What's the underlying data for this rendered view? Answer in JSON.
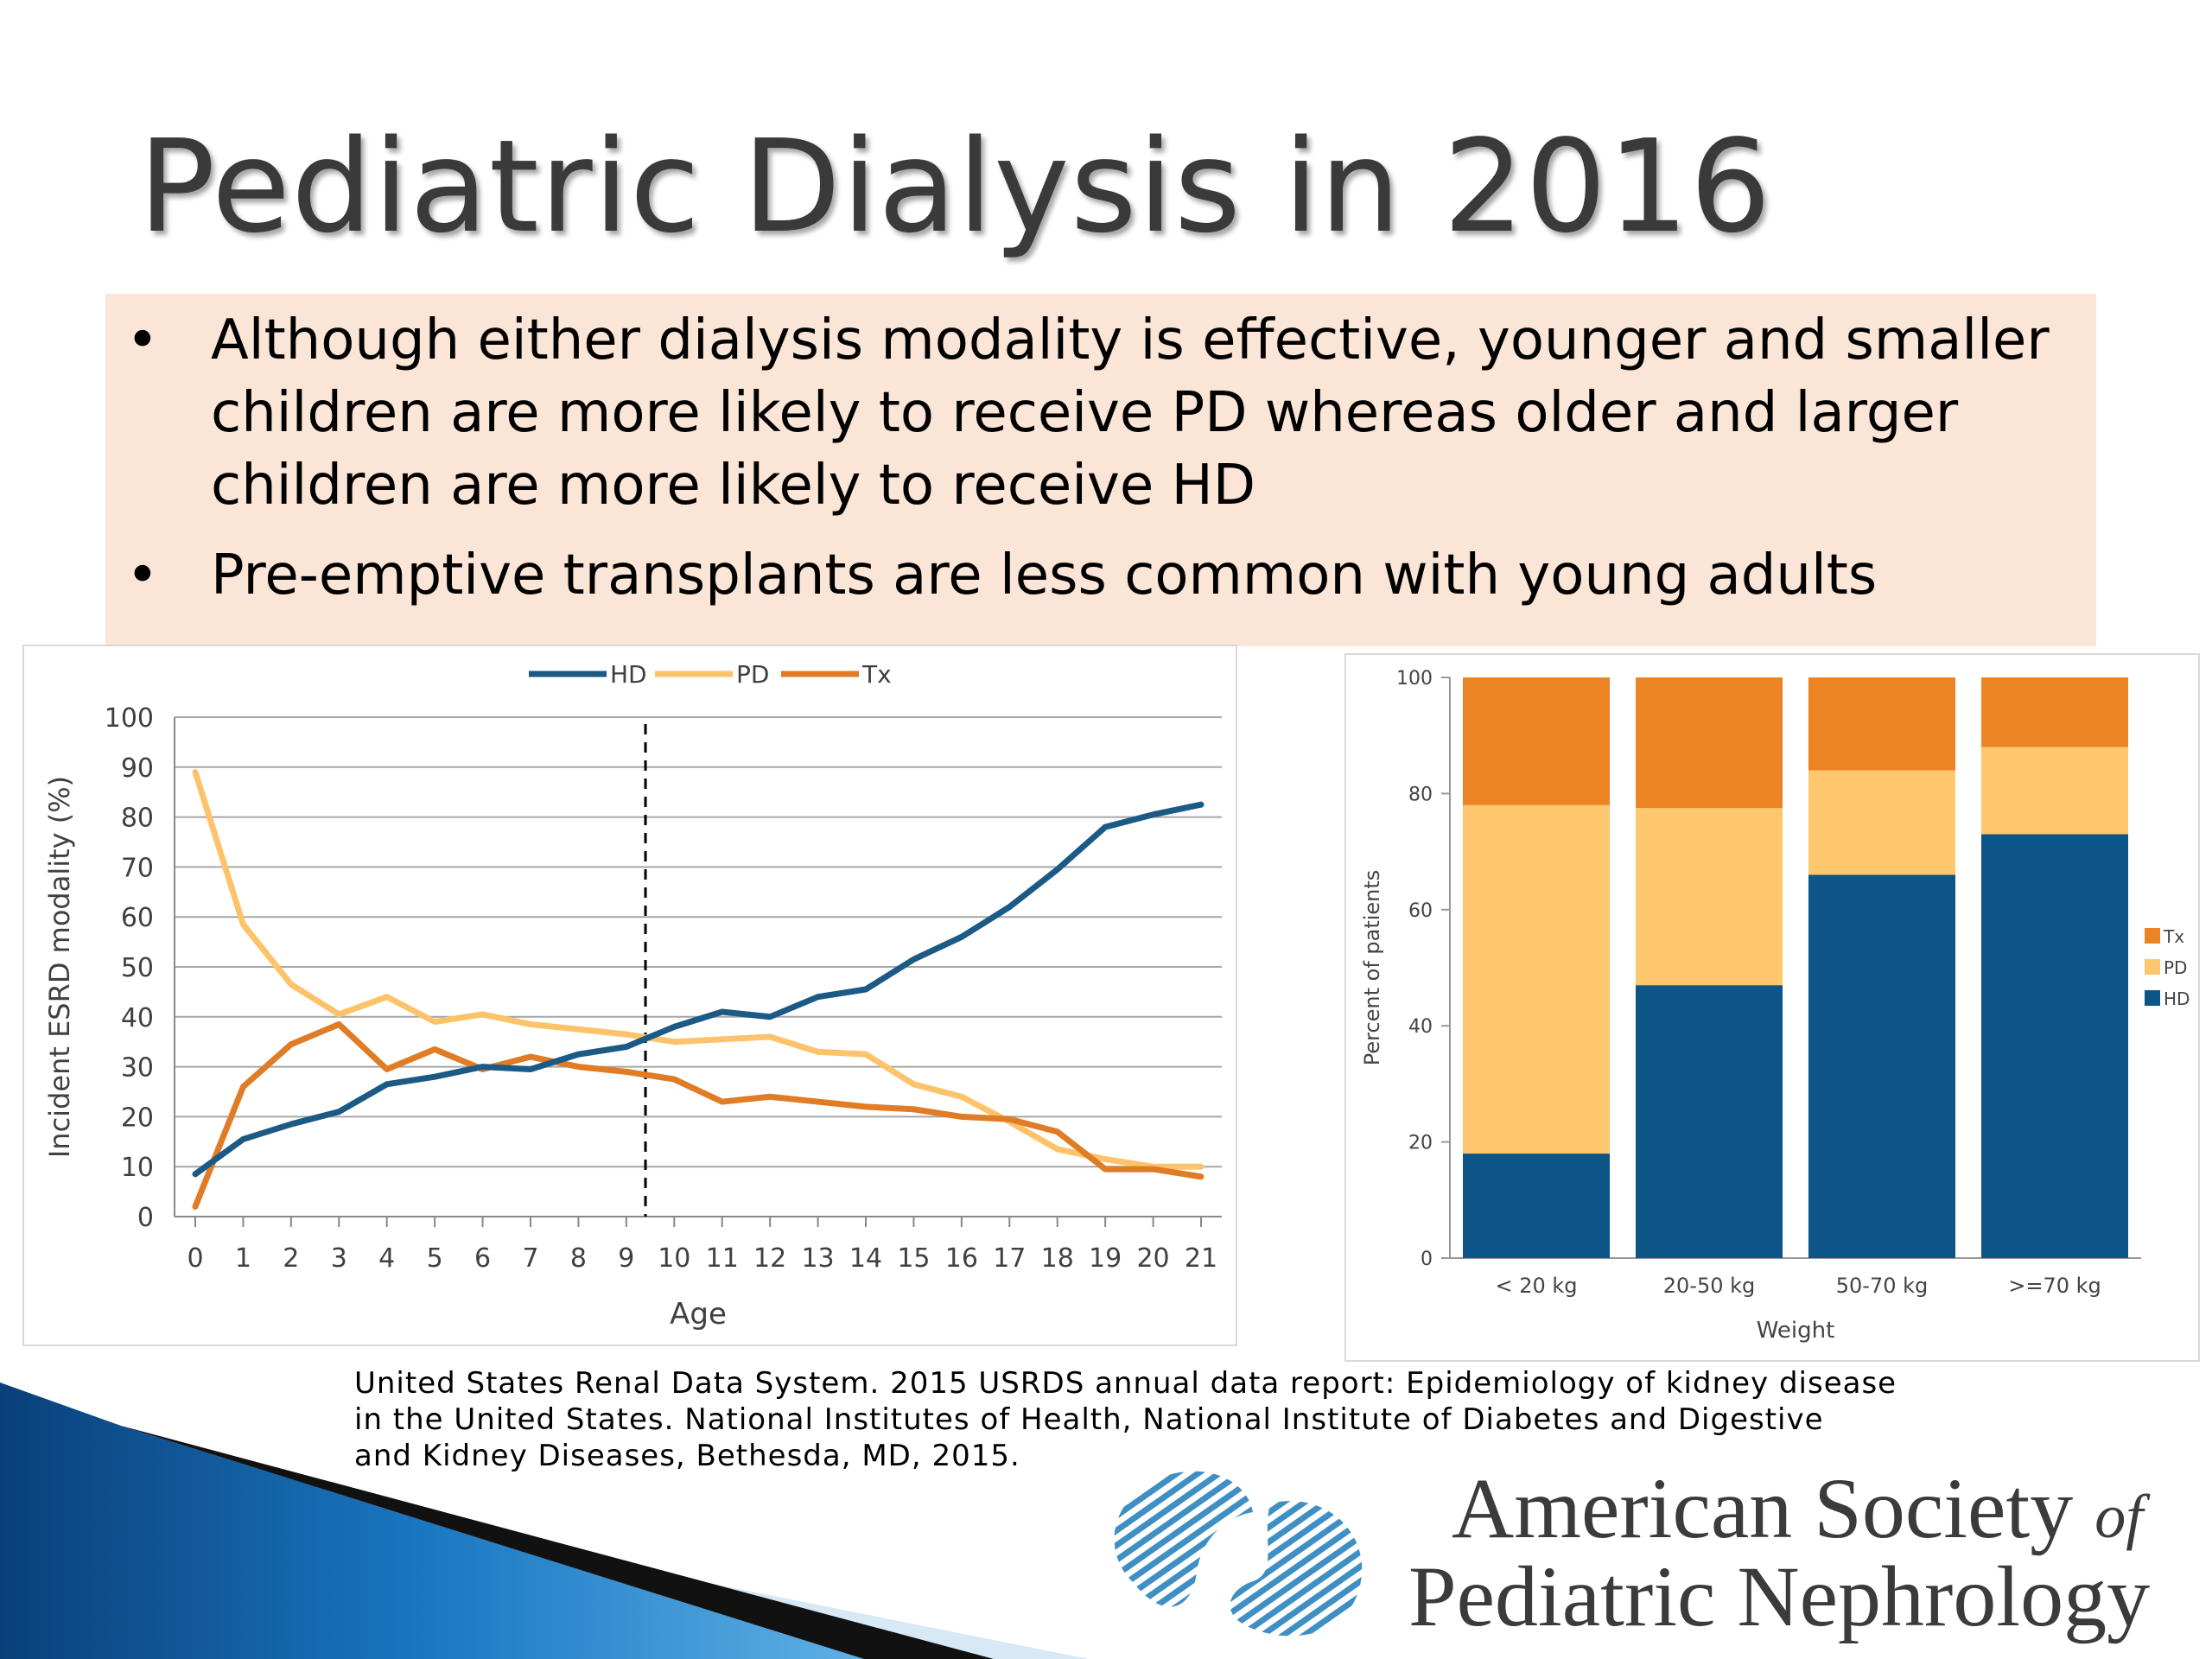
{
  "slide": {
    "title": "Pediatric Dialysis in 2016",
    "bullets": [
      "Although either dialysis modality is effective, younger and smaller children are more likely to receive PD whereas older and larger children are more likely to receive HD",
      "Pre-emptive transplants are less common with young adults"
    ],
    "bullet_char": "•",
    "citation_lines": [
      "United States Renal Data System. 2015 USRDS annual data report: Epidemiology of kidney disease",
      "in the United States. National Institutes of Health, National Institute of Diabetes and Digestive",
      "and Kidney Diseases, Bethesda, MD, 2015."
    ],
    "logo": {
      "line1_main": "American Society ",
      "line1_of": "of",
      "line2": "Pediatric Nephrology"
    }
  },
  "colors": {
    "bullet_bg": "#fbe5d6",
    "HD": "#1b5a85",
    "PD": "#fdc36a",
    "Tx": "#e07b26",
    "bar_HD": "#0d5487",
    "bar_PD": "#fec76d",
    "bar_Tx": "#ec8423",
    "logo_blue": "#3f8fc4"
  },
  "chart_data": [
    {
      "type": "line",
      "xlabel": "Age",
      "ylabel": "Incident ESRD modality (%)",
      "x": [
        0,
        1,
        2,
        3,
        4,
        5,
        6,
        7,
        8,
        9,
        10,
        11,
        12,
        13,
        14,
        15,
        16,
        17,
        18,
        19,
        20,
        21
      ],
      "xlim": [
        0,
        21
      ],
      "ylim": [
        0,
        100
      ],
      "yticks": [
        0,
        10,
        20,
        30,
        40,
        50,
        60,
        70,
        80,
        90,
        100
      ],
      "grid": true,
      "legend_position": "top-center",
      "reference_line_x": 9.4,
      "series": [
        {
          "name": "HD",
          "values": [
            8.5,
            15.5,
            18.5,
            21,
            26.5,
            28,
            30,
            29.5,
            32.5,
            34,
            38,
            41,
            40,
            44,
            45.5,
            51.5,
            56,
            62,
            69.5,
            78,
            80.5,
            82.5
          ]
        },
        {
          "name": "PD",
          "values": [
            89,
            58.5,
            46.5,
            40.5,
            44,
            39,
            40.5,
            38.5,
            37.5,
            36.5,
            35,
            35.5,
            36,
            33,
            32.5,
            26.5,
            24,
            19,
            13.5,
            11.5,
            10,
            10
          ]
        },
        {
          "name": "Tx",
          "values": [
            2,
            26,
            34.5,
            38.5,
            29.5,
            33.5,
            29.5,
            32,
            30,
            29,
            27.5,
            23,
            24,
            23,
            22,
            21.5,
            20,
            19.5,
            17,
            9.5,
            9.5,
            8
          ]
        }
      ]
    },
    {
      "type": "bar",
      "stacked": true,
      "xlabel": "Weight",
      "ylabel": "Percent of patients",
      "categories": [
        "< 20 kg",
        "20-50 kg",
        "50-70 kg",
        ">=70 kg"
      ],
      "ylim": [
        0,
        100
      ],
      "yticks": [
        0,
        20,
        40,
        60,
        80,
        100
      ],
      "grid": false,
      "legend_position": "right",
      "series": [
        {
          "name": "HD",
          "values": [
            18,
            47,
            66,
            73
          ]
        },
        {
          "name": "PD",
          "values": [
            60,
            30.5,
            18,
            15
          ]
        },
        {
          "name": "Tx",
          "values": [
            22,
            22.5,
            16,
            12
          ]
        }
      ]
    }
  ]
}
